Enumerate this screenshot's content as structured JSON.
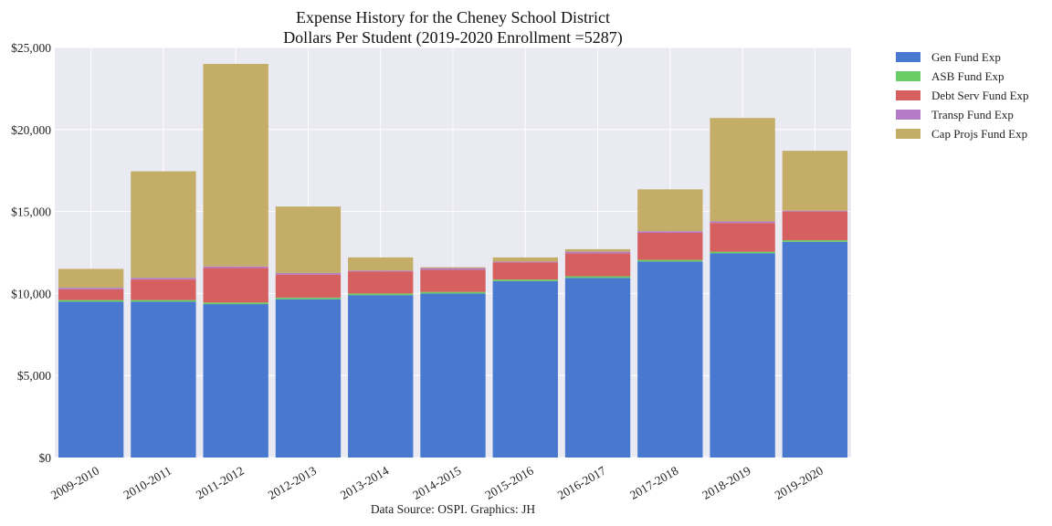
{
  "chart_data": {
    "type": "bar",
    "stacked": true,
    "title": "Expense History for the Cheney School District",
    "subtitle": "Dollars Per Student (2019-2020 Enrollment =5287)",
    "source": "Data Source: OSPI. Graphics: JH",
    "xlabel": "",
    "ylabel": "",
    "ylim": [
      0,
      25000
    ],
    "yticks": [
      0,
      5000,
      10000,
      15000,
      20000,
      25000
    ],
    "ytick_labels": [
      "$0",
      "$5,000",
      "$10,000",
      "$15,000",
      "$20,000",
      "$25,000"
    ],
    "grid": true,
    "legend_position": "outside-top-right",
    "categories": [
      "2009-2010",
      "2010-2011",
      "2011-2012",
      "2012-2013",
      "2013-2014",
      "2014-2015",
      "2015-2016",
      "2016-2017",
      "2017-2018",
      "2018-2019",
      "2019-2020"
    ],
    "series": [
      {
        "name": "Gen Fund Exp",
        "color": "#4878cf",
        "values": [
          9500,
          9500,
          9350,
          9650,
          9900,
          10000,
          10750,
          10950,
          11950,
          12450,
          13150
        ]
      },
      {
        "name": "ASB Fund Exp",
        "color": "#6acc65",
        "values": [
          100,
          100,
          100,
          100,
          100,
          100,
          100,
          100,
          100,
          100,
          100
        ]
      },
      {
        "name": "Debt Serv Fund Exp",
        "color": "#d65f5f",
        "values": [
          650,
          1250,
          2100,
          1400,
          1350,
          1350,
          1050,
          1400,
          1650,
          1750,
          1750
        ]
      },
      {
        "name": "Transp Fund Exp",
        "color": "#b47cc7",
        "values": [
          100,
          100,
          100,
          100,
          50,
          100,
          50,
          100,
          100,
          100,
          50
        ]
      },
      {
        "name": "Cap Projs Fund Exp",
        "color": "#c4ad66",
        "values": [
          1150,
          6500,
          12350,
          4050,
          800,
          50,
          250,
          150,
          2550,
          6300,
          3650
        ]
      }
    ]
  }
}
